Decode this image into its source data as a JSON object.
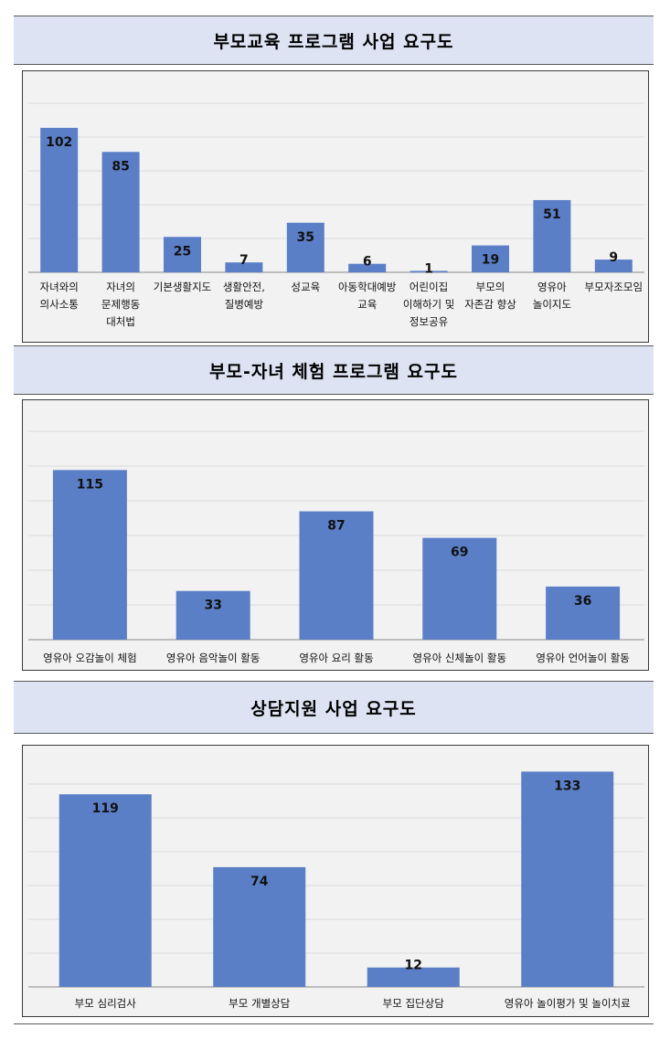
{
  "bar_color": "#5b7fc7",
  "grid_color": "#d9d9d9",
  "axis_color": "#888888",
  "chart_data": [
    {
      "type": "bar",
      "title": "부모교육 프로그램 사업 요구도",
      "categories": [
        [
          "자녀와의",
          "의사소통"
        ],
        [
          "자녀의",
          "문제행동",
          "대처법"
        ],
        [
          "기본생활지도"
        ],
        [
          "생활안전,",
          "질병예방"
        ],
        [
          "성교육"
        ],
        [
          "아동학대예방",
          "교육"
        ],
        [
          "어린이집",
          "이해하기 및",
          "정보공유"
        ],
        [
          "부모의",
          "자존감 향상"
        ],
        [
          "영유아",
          "놀이지도"
        ],
        [
          "부모자조모임"
        ]
      ],
      "values": [
        102,
        85,
        25,
        7,
        35,
        6,
        1,
        19,
        51,
        9
      ],
      "ylim": [
        0,
        120
      ],
      "grid": true
    },
    {
      "type": "bar",
      "title": "부모-자녀 체험 프로그램 요구도",
      "categories": [
        [
          "영유아 오감놀이 체험"
        ],
        [
          "영유아 음악놀이 활동"
        ],
        [
          "영유아 요리 활동"
        ],
        [
          "영유아 신체놀이 활동"
        ],
        [
          "영유아 언어놀이 활동"
        ]
      ],
      "values": [
        115,
        33,
        87,
        69,
        36
      ],
      "ylim": [
        0,
        140
      ],
      "grid": true
    },
    {
      "type": "bar",
      "title": "상담지원 사업 요구도",
      "categories": [
        [
          "부모 심리검사"
        ],
        [
          "부모 개별상담"
        ],
        [
          "부모 집단상담"
        ],
        [
          "영유아 놀이평가 및 놀이치료"
        ]
      ],
      "values": [
        119,
        74,
        12,
        133
      ],
      "ylim": [
        0,
        140
      ],
      "grid": true
    }
  ]
}
